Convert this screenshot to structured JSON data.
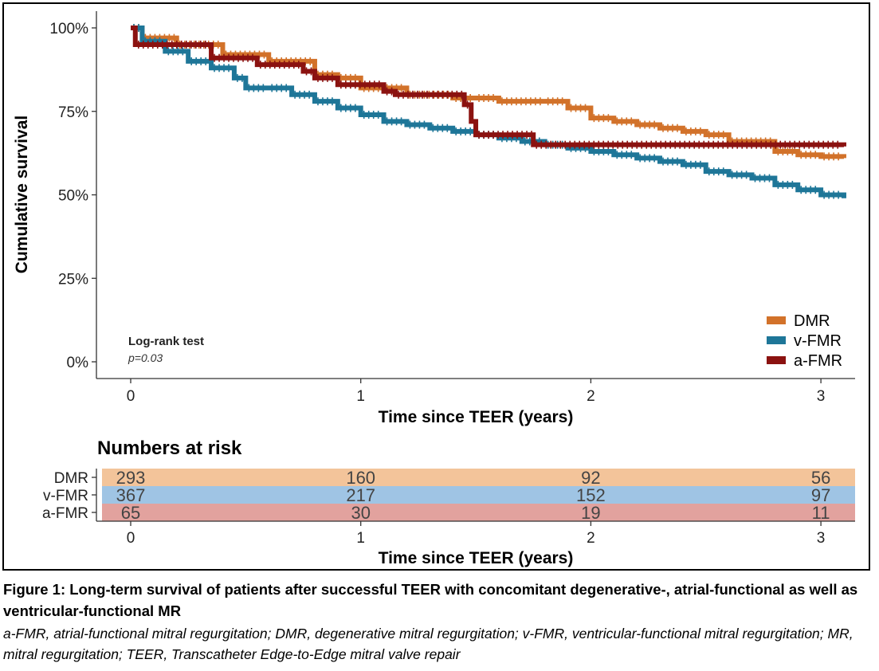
{
  "chart_data": {
    "type": "line",
    "subtype": "kaplan-meier",
    "ylabel": "Cumulative survival",
    "xlabel": "Time since TEER (years)",
    "xlim": [
      -0.14,
      3.14
    ],
    "ylim": [
      0,
      100
    ],
    "x_ticks": [
      0,
      1,
      2,
      3
    ],
    "x_tick_labels": [
      "0",
      "1",
      "2",
      "3"
    ],
    "y_ticks": [
      0,
      25,
      50,
      75,
      100
    ],
    "y_tick_labels": [
      "0%",
      "25%",
      "50%",
      "75%",
      "100%"
    ],
    "grid": false,
    "legend_position": "bottom-right",
    "annotation": {
      "title": "Log-rank test",
      "p_value": "p=0.03"
    },
    "series": [
      {
        "name": "DMR",
        "color": "#d2722a",
        "points": [
          [
            0,
            100
          ],
          [
            0.05,
            97
          ],
          [
            0.2,
            95
          ],
          [
            0.4,
            92
          ],
          [
            0.6,
            90
          ],
          [
            0.8,
            86
          ],
          [
            0.9,
            85
          ],
          [
            1.0,
            82
          ],
          [
            1.1,
            82
          ],
          [
            1.2,
            80
          ],
          [
            1.4,
            79
          ],
          [
            1.5,
            79
          ],
          [
            1.6,
            78
          ],
          [
            1.8,
            78
          ],
          [
            1.9,
            76
          ],
          [
            2.0,
            73
          ],
          [
            2.1,
            72
          ],
          [
            2.2,
            71
          ],
          [
            2.3,
            70
          ],
          [
            2.4,
            69
          ],
          [
            2.5,
            68
          ],
          [
            2.6,
            66
          ],
          [
            2.8,
            63
          ],
          [
            2.9,
            62
          ],
          [
            3.0,
            61.5
          ],
          [
            3.1,
            61
          ]
        ]
      },
      {
        "name": "v-FMR",
        "color": "#1e7698",
        "points": [
          [
            0,
            100
          ],
          [
            0.05,
            96
          ],
          [
            0.15,
            93
          ],
          [
            0.25,
            90
          ],
          [
            0.35,
            88
          ],
          [
            0.45,
            85
          ],
          [
            0.5,
            82
          ],
          [
            0.6,
            82
          ],
          [
            0.7,
            80
          ],
          [
            0.8,
            78
          ],
          [
            0.9,
            76
          ],
          [
            1.0,
            74
          ],
          [
            1.1,
            72
          ],
          [
            1.2,
            71
          ],
          [
            1.3,
            70
          ],
          [
            1.4,
            69
          ],
          [
            1.5,
            68
          ],
          [
            1.6,
            67
          ],
          [
            1.7,
            66
          ],
          [
            1.8,
            65
          ],
          [
            1.9,
            64
          ],
          [
            2.0,
            63
          ],
          [
            2.1,
            62
          ],
          [
            2.2,
            61
          ],
          [
            2.3,
            60
          ],
          [
            2.4,
            59
          ],
          [
            2.5,
            57
          ],
          [
            2.6,
            56
          ],
          [
            2.7,
            55
          ],
          [
            2.8,
            53
          ],
          [
            2.9,
            51.5
          ],
          [
            3.0,
            50
          ],
          [
            3.1,
            49
          ]
        ]
      },
      {
        "name": "a-FMR",
        "color": "#8b1210",
        "points": [
          [
            0,
            100
          ],
          [
            0.02,
            95
          ],
          [
            0.35,
            93
          ],
          [
            0.35,
            91
          ],
          [
            0.55,
            89
          ],
          [
            0.75,
            87
          ],
          [
            0.8,
            85
          ],
          [
            0.9,
            83
          ],
          [
            1.1,
            83
          ],
          [
            1.1,
            81
          ],
          [
            1.15,
            80
          ],
          [
            1.3,
            80
          ],
          [
            1.45,
            77
          ],
          [
            1.48,
            72
          ],
          [
            1.5,
            68
          ],
          [
            1.75,
            68
          ],
          [
            1.75,
            65
          ],
          [
            3.1,
            64.5
          ]
        ]
      }
    ],
    "risk_table": {
      "title": "Numbers at risk",
      "xlabel": "Time since TEER (years)",
      "times": [
        0,
        1,
        2,
        3
      ],
      "time_labels": [
        "0",
        "1",
        "2",
        "3"
      ],
      "rows": [
        {
          "label": "DMR",
          "values": [
            "293",
            "160",
            "92",
            "56"
          ],
          "band_color": "#f3c49a"
        },
        {
          "label": "v-FMR",
          "values": [
            "367",
            "217",
            "152",
            "97"
          ],
          "band_color": "#9fc4e4"
        },
        {
          "label": "a-FMR",
          "values": [
            "65",
            "30",
            "19",
            "11"
          ],
          "band_color": "#e2a29e"
        }
      ]
    }
  },
  "caption": {
    "title": "Figure 1: Long-term survival of patients after successful TEER with concomitant degenerative-, atrial-functional as well as ventricular-functional MR",
    "text": "a-FMR, atrial-functional mitral regurgitation; DMR, degenerative mitral regurgitation; v-FMR, ventricular-functional mitral regurgitation; MR, mitral regurgitation; TEER, Transcatheter Edge-to-Edge mitral valve repair"
  }
}
